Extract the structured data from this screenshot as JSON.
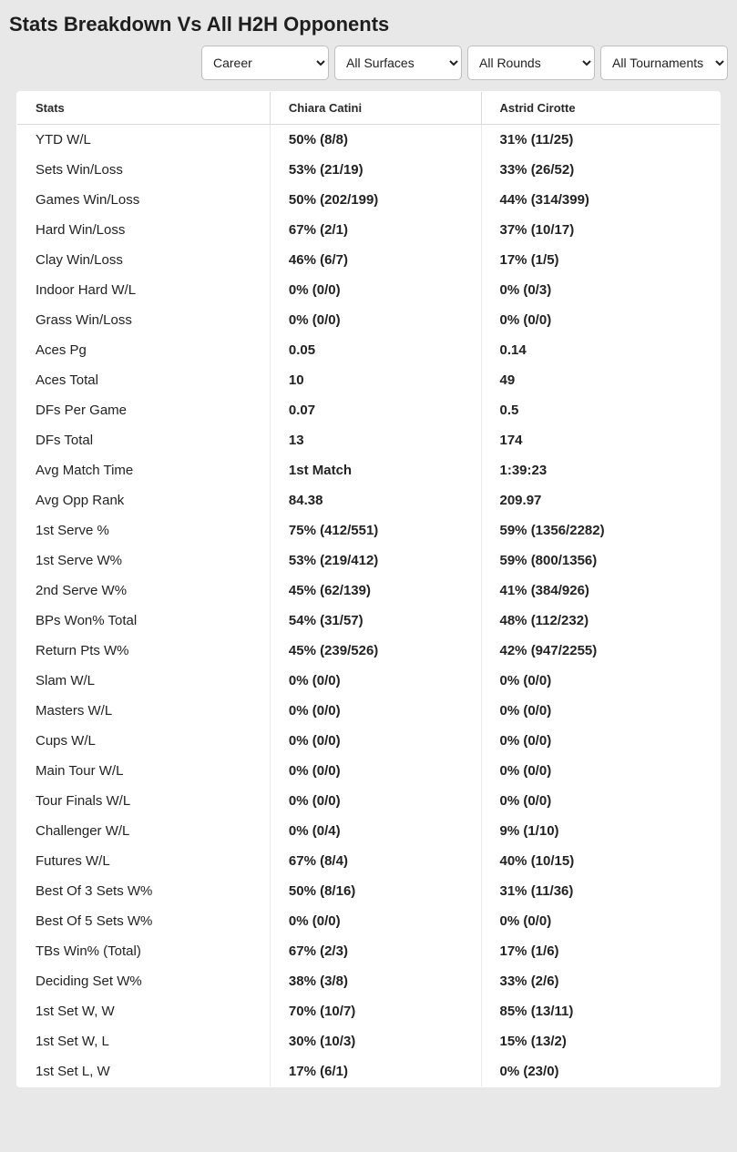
{
  "page_title": "Stats Breakdown Vs All H2H Opponents",
  "filters": {
    "career": "Career",
    "surfaces": "All Surfaces",
    "rounds": "All Rounds",
    "tournaments": "All Tournaments"
  },
  "columns": {
    "stats": "Stats",
    "player1": "Chiara Catini",
    "player2": "Astrid Cirotte"
  },
  "rows": [
    {
      "label": "YTD W/L",
      "p1": "50% (8/8)",
      "p2": "31% (11/25)"
    },
    {
      "label": "Sets Win/Loss",
      "p1": "53% (21/19)",
      "p2": "33% (26/52)"
    },
    {
      "label": "Games Win/Loss",
      "p1": "50% (202/199)",
      "p2": "44% (314/399)"
    },
    {
      "label": "Hard Win/Loss",
      "p1": "67% (2/1)",
      "p2": "37% (10/17)"
    },
    {
      "label": "Clay Win/Loss",
      "p1": "46% (6/7)",
      "p2": "17% (1/5)"
    },
    {
      "label": "Indoor Hard W/L",
      "p1": "0% (0/0)",
      "p2": "0% (0/3)"
    },
    {
      "label": "Grass Win/Loss",
      "p1": "0% (0/0)",
      "p2": "0% (0/0)"
    },
    {
      "label": "Aces Pg",
      "p1": "0.05",
      "p2": "0.14"
    },
    {
      "label": "Aces Total",
      "p1": "10",
      "p2": "49"
    },
    {
      "label": "DFs Per Game",
      "p1": "0.07",
      "p2": "0.5"
    },
    {
      "label": "DFs Total",
      "p1": "13",
      "p2": "174"
    },
    {
      "label": "Avg Match Time",
      "p1": "1st Match",
      "p2": "1:39:23"
    },
    {
      "label": "Avg Opp Rank",
      "p1": "84.38",
      "p2": "209.97"
    },
    {
      "label": "1st Serve %",
      "p1": "75% (412/551)",
      "p2": "59% (1356/2282)"
    },
    {
      "label": "1st Serve W%",
      "p1": "53% (219/412)",
      "p2": "59% (800/1356)"
    },
    {
      "label": "2nd Serve W%",
      "p1": "45% (62/139)",
      "p2": "41% (384/926)"
    },
    {
      "label": "BPs Won% Total",
      "p1": "54% (31/57)",
      "p2": "48% (112/232)"
    },
    {
      "label": "Return Pts W%",
      "p1": "45% (239/526)",
      "p2": "42% (947/2255)"
    },
    {
      "label": "Slam W/L",
      "p1": "0% (0/0)",
      "p2": "0% (0/0)"
    },
    {
      "label": "Masters W/L",
      "p1": "0% (0/0)",
      "p2": "0% (0/0)"
    },
    {
      "label": "Cups W/L",
      "p1": "0% (0/0)",
      "p2": "0% (0/0)"
    },
    {
      "label": "Main Tour W/L",
      "p1": "0% (0/0)",
      "p2": "0% (0/0)"
    },
    {
      "label": "Tour Finals W/L",
      "p1": "0% (0/0)",
      "p2": "0% (0/0)"
    },
    {
      "label": "Challenger W/L",
      "p1": "0% (0/4)",
      "p2": "9% (1/10)"
    },
    {
      "label": "Futures W/L",
      "p1": "67% (8/4)",
      "p2": "40% (10/15)"
    },
    {
      "label": "Best Of 3 Sets W%",
      "p1": "50% (8/16)",
      "p2": "31% (11/36)"
    },
    {
      "label": "Best Of 5 Sets W%",
      "p1": "0% (0/0)",
      "p2": "0% (0/0)"
    },
    {
      "label": "TBs Win% (Total)",
      "p1": "67% (2/3)",
      "p2": "17% (1/6)"
    },
    {
      "label": "Deciding Set W%",
      "p1": "38% (3/8)",
      "p2": "33% (2/6)"
    },
    {
      "label": "1st Set W, W",
      "p1": "70% (10/7)",
      "p2": "85% (13/11)"
    },
    {
      "label": "1st Set W, L",
      "p1": "30% (10/3)",
      "p2": "15% (13/2)"
    },
    {
      "label": "1st Set L, W",
      "p1": "17% (6/1)",
      "p2": "0% (23/0)"
    }
  ]
}
